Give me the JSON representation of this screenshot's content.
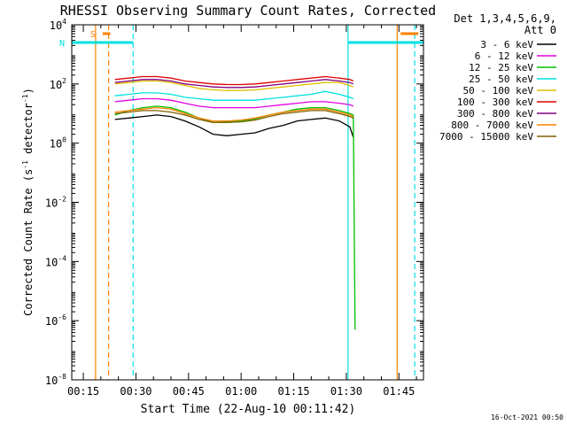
{
  "chart_data": {
    "type": "line",
    "title": "RHESSI Observing Summary Count Rates, Corrected",
    "xlabel": "Start Time (22-Aug-10 00:11:42)",
    "ylabel": "Corrected Count Rate (s^-1 detector^-1)",
    "ylabel_main": "Corrected Count Rate (s",
    "ylabel_unit": "detector",
    "ylabel_exp": "-1",
    "y_scale": "log",
    "ylim_exp": [
      -8,
      4
    ],
    "x_ticks": [
      "00:15",
      "00:30",
      "00:45",
      "01:00",
      "01:15",
      "01:30",
      "01:45"
    ],
    "x_ticks_min": [
      15,
      30,
      45,
      60,
      75,
      90,
      105
    ],
    "xlim_min": [
      11.7,
      112
    ],
    "y_ticks": [
      {
        "base": "10",
        "exp": "4",
        "v": 4
      },
      {
        "base": "10",
        "exp": "2",
        "v": 2
      },
      {
        "base": "10",
        "exp": "0",
        "v": 0
      },
      {
        "base": "10",
        "exp": "-2",
        "v": -2
      },
      {
        "base": "10",
        "exp": "-4",
        "v": -4
      },
      {
        "base": "10",
        "exp": "-6",
        "v": -6
      },
      {
        "base": "10",
        "exp": "-8",
        "v": -8
      }
    ],
    "legend_header": [
      "Det 1,3,4,5,6,9,",
      "Att 0"
    ],
    "legend_placement": "right",
    "series": [
      {
        "name": "3 - 6 keV",
        "color": "#000000",
        "points": [
          [
            24,
            0.8
          ],
          [
            28,
            0.85
          ],
          [
            32,
            0.9
          ],
          [
            36,
            0.95
          ],
          [
            40,
            0.9
          ],
          [
            44,
            0.75
          ],
          [
            48,
            0.55
          ],
          [
            52,
            0.3
          ],
          [
            56,
            0.25
          ],
          [
            60,
            0.3
          ],
          [
            64,
            0.35
          ],
          [
            68,
            0.5
          ],
          [
            72,
            0.6
          ],
          [
            76,
            0.75
          ],
          [
            80,
            0.8
          ],
          [
            84,
            0.85
          ],
          [
            88,
            0.75
          ],
          [
            91,
            0.55
          ],
          [
            92,
            0.2
          ]
        ]
      },
      {
        "name": "6 - 12 keV",
        "color": "#e000e0",
        "points": [
          [
            24,
            1.4
          ],
          [
            28,
            1.45
          ],
          [
            32,
            1.5
          ],
          [
            36,
            1.5
          ],
          [
            40,
            1.45
          ],
          [
            44,
            1.35
          ],
          [
            48,
            1.25
          ],
          [
            52,
            1.2
          ],
          [
            56,
            1.2
          ],
          [
            60,
            1.2
          ],
          [
            64,
            1.2
          ],
          [
            68,
            1.25
          ],
          [
            72,
            1.3
          ],
          [
            76,
            1.35
          ],
          [
            80,
            1.4
          ],
          [
            84,
            1.4
          ],
          [
            88,
            1.35
          ],
          [
            91,
            1.3
          ],
          [
            92,
            1.25
          ]
        ]
      },
      {
        "name": "12 - 25 keV",
        "color": "#00c000",
        "points": [
          [
            24,
            0.95
          ],
          [
            28,
            1.1
          ],
          [
            32,
            1.2
          ],
          [
            36,
            1.25
          ],
          [
            40,
            1.2
          ],
          [
            44,
            1.05
          ],
          [
            48,
            0.85
          ],
          [
            52,
            0.7
          ],
          [
            56,
            0.72
          ],
          [
            60,
            0.75
          ],
          [
            64,
            0.82
          ],
          [
            68,
            0.95
          ],
          [
            72,
            1.05
          ],
          [
            76,
            1.15
          ],
          [
            80,
            1.2
          ],
          [
            84,
            1.2
          ],
          [
            88,
            1.1
          ],
          [
            91,
            1.0
          ],
          [
            92,
            0.95
          ],
          [
            92.5,
            -6.3
          ]
        ]
      },
      {
        "name": "25 - 50 keV",
        "color": "#00e0e0",
        "points": [
          [
            24,
            1.6
          ],
          [
            28,
            1.65
          ],
          [
            32,
            1.7
          ],
          [
            36,
            1.7
          ],
          [
            40,
            1.65
          ],
          [
            44,
            1.55
          ],
          [
            48,
            1.5
          ],
          [
            52,
            1.45
          ],
          [
            56,
            1.45
          ],
          [
            60,
            1.45
          ],
          [
            64,
            1.45
          ],
          [
            68,
            1.5
          ],
          [
            72,
            1.55
          ],
          [
            76,
            1.6
          ],
          [
            80,
            1.65
          ],
          [
            84,
            1.75
          ],
          [
            88,
            1.65
          ],
          [
            91,
            1.55
          ],
          [
            92,
            1.5
          ]
        ]
      },
      {
        "name": "50 - 100 keV",
        "color": "#e0c000",
        "points": [
          [
            24,
            2.0
          ],
          [
            28,
            2.05
          ],
          [
            32,
            2.1
          ],
          [
            36,
            2.1
          ],
          [
            40,
            2.05
          ],
          [
            44,
            1.95
          ],
          [
            48,
            1.85
          ],
          [
            52,
            1.8
          ],
          [
            56,
            1.78
          ],
          [
            60,
            1.78
          ],
          [
            64,
            1.8
          ],
          [
            68,
            1.85
          ],
          [
            72,
            1.9
          ],
          [
            76,
            1.95
          ],
          [
            80,
            2.0
          ],
          [
            84,
            2.05
          ],
          [
            88,
            2.05
          ],
          [
            91,
            1.95
          ],
          [
            92,
            1.9
          ]
        ]
      },
      {
        "name": "100 - 300 keV",
        "color": "#e00000",
        "points": [
          [
            24,
            2.15
          ],
          [
            28,
            2.2
          ],
          [
            32,
            2.25
          ],
          [
            36,
            2.25
          ],
          [
            40,
            2.2
          ],
          [
            44,
            2.1
          ],
          [
            48,
            2.05
          ],
          [
            52,
            2.0
          ],
          [
            56,
            1.98
          ],
          [
            60,
            1.98
          ],
          [
            64,
            2.0
          ],
          [
            68,
            2.05
          ],
          [
            72,
            2.1
          ],
          [
            76,
            2.15
          ],
          [
            80,
            2.2
          ],
          [
            84,
            2.25
          ],
          [
            88,
            2.2
          ],
          [
            91,
            2.15
          ],
          [
            92,
            2.1
          ]
        ]
      },
      {
        "name": "300 - 800 keV",
        "color": "#800080",
        "points": [
          [
            24,
            2.05
          ],
          [
            28,
            2.1
          ],
          [
            32,
            2.15
          ],
          [
            36,
            2.15
          ],
          [
            40,
            2.1
          ],
          [
            44,
            2.0
          ],
          [
            48,
            1.95
          ],
          [
            52,
            1.9
          ],
          [
            56,
            1.88
          ],
          [
            60,
            1.88
          ],
          [
            64,
            1.9
          ],
          [
            68,
            1.95
          ],
          [
            72,
            2.0
          ],
          [
            76,
            2.05
          ],
          [
            80,
            2.1
          ],
          [
            84,
            2.15
          ],
          [
            88,
            2.1
          ],
          [
            91,
            2.05
          ],
          [
            92,
            2.0
          ]
        ]
      },
      {
        "name": "800 - 7000 keV",
        "color": "#ff8000",
        "points": [
          [
            24,
            1.05
          ],
          [
            28,
            1.1
          ],
          [
            32,
            1.15
          ],
          [
            36,
            1.2
          ],
          [
            40,
            1.15
          ],
          [
            44,
            1.0
          ],
          [
            48,
            0.85
          ],
          [
            52,
            0.75
          ],
          [
            56,
            0.75
          ],
          [
            60,
            0.78
          ],
          [
            64,
            0.85
          ],
          [
            68,
            0.95
          ],
          [
            72,
            1.05
          ],
          [
            76,
            1.1
          ],
          [
            80,
            1.15
          ],
          [
            84,
            1.15
          ],
          [
            88,
            1.05
          ],
          [
            91,
            0.95
          ],
          [
            92,
            0.9
          ]
        ]
      },
      {
        "name": "7000 - 15000 keV",
        "color": "#806000",
        "points": [
          [
            24,
            1.0
          ],
          [
            28,
            1.05
          ],
          [
            32,
            1.1
          ],
          [
            36,
            1.1
          ],
          [
            40,
            1.05
          ],
          [
            44,
            0.95
          ],
          [
            48,
            0.8
          ],
          [
            52,
            0.7
          ],
          [
            56,
            0.7
          ],
          [
            60,
            0.72
          ],
          [
            64,
            0.78
          ],
          [
            68,
            0.9
          ],
          [
            72,
            1.0
          ],
          [
            76,
            1.05
          ],
          [
            80,
            1.1
          ],
          [
            84,
            1.1
          ],
          [
            88,
            1.0
          ],
          [
            91,
            0.9
          ],
          [
            92,
            0.85
          ]
        ]
      }
    ],
    "flags": [
      {
        "label": "S",
        "color": "#ff8000",
        "start": 20.5,
        "end": 22.7,
        "level": 3.7
      },
      {
        "label": "N",
        "color": "#00e0e0",
        "start": 11.7,
        "end": 29.2,
        "level": 3.4
      },
      {
        "label": "",
        "color": "#00e0e0",
        "start": 90.5,
        "end": 112,
        "level": 3.4
      },
      {
        "label": "",
        "color": "#ff8000",
        "start": 105.5,
        "end": 110.5,
        "level": 3.7
      }
    ],
    "vlines": [
      {
        "x": 18.5,
        "color": "#ff8000",
        "dash": false
      },
      {
        "x": 22.2,
        "color": "#ff8000",
        "dash": true
      },
      {
        "x": 29.2,
        "color": "#00e0e0",
        "dash": true
      },
      {
        "x": 90.5,
        "color": "#00e0e0",
        "dash": false
      },
      {
        "x": 104.5,
        "color": "#ff8000",
        "dash": false
      },
      {
        "x": 109.5,
        "color": "#00e0e0",
        "dash": true
      }
    ]
  },
  "footer": {
    "timestamp": "16-Oct-2021 00:50"
  }
}
